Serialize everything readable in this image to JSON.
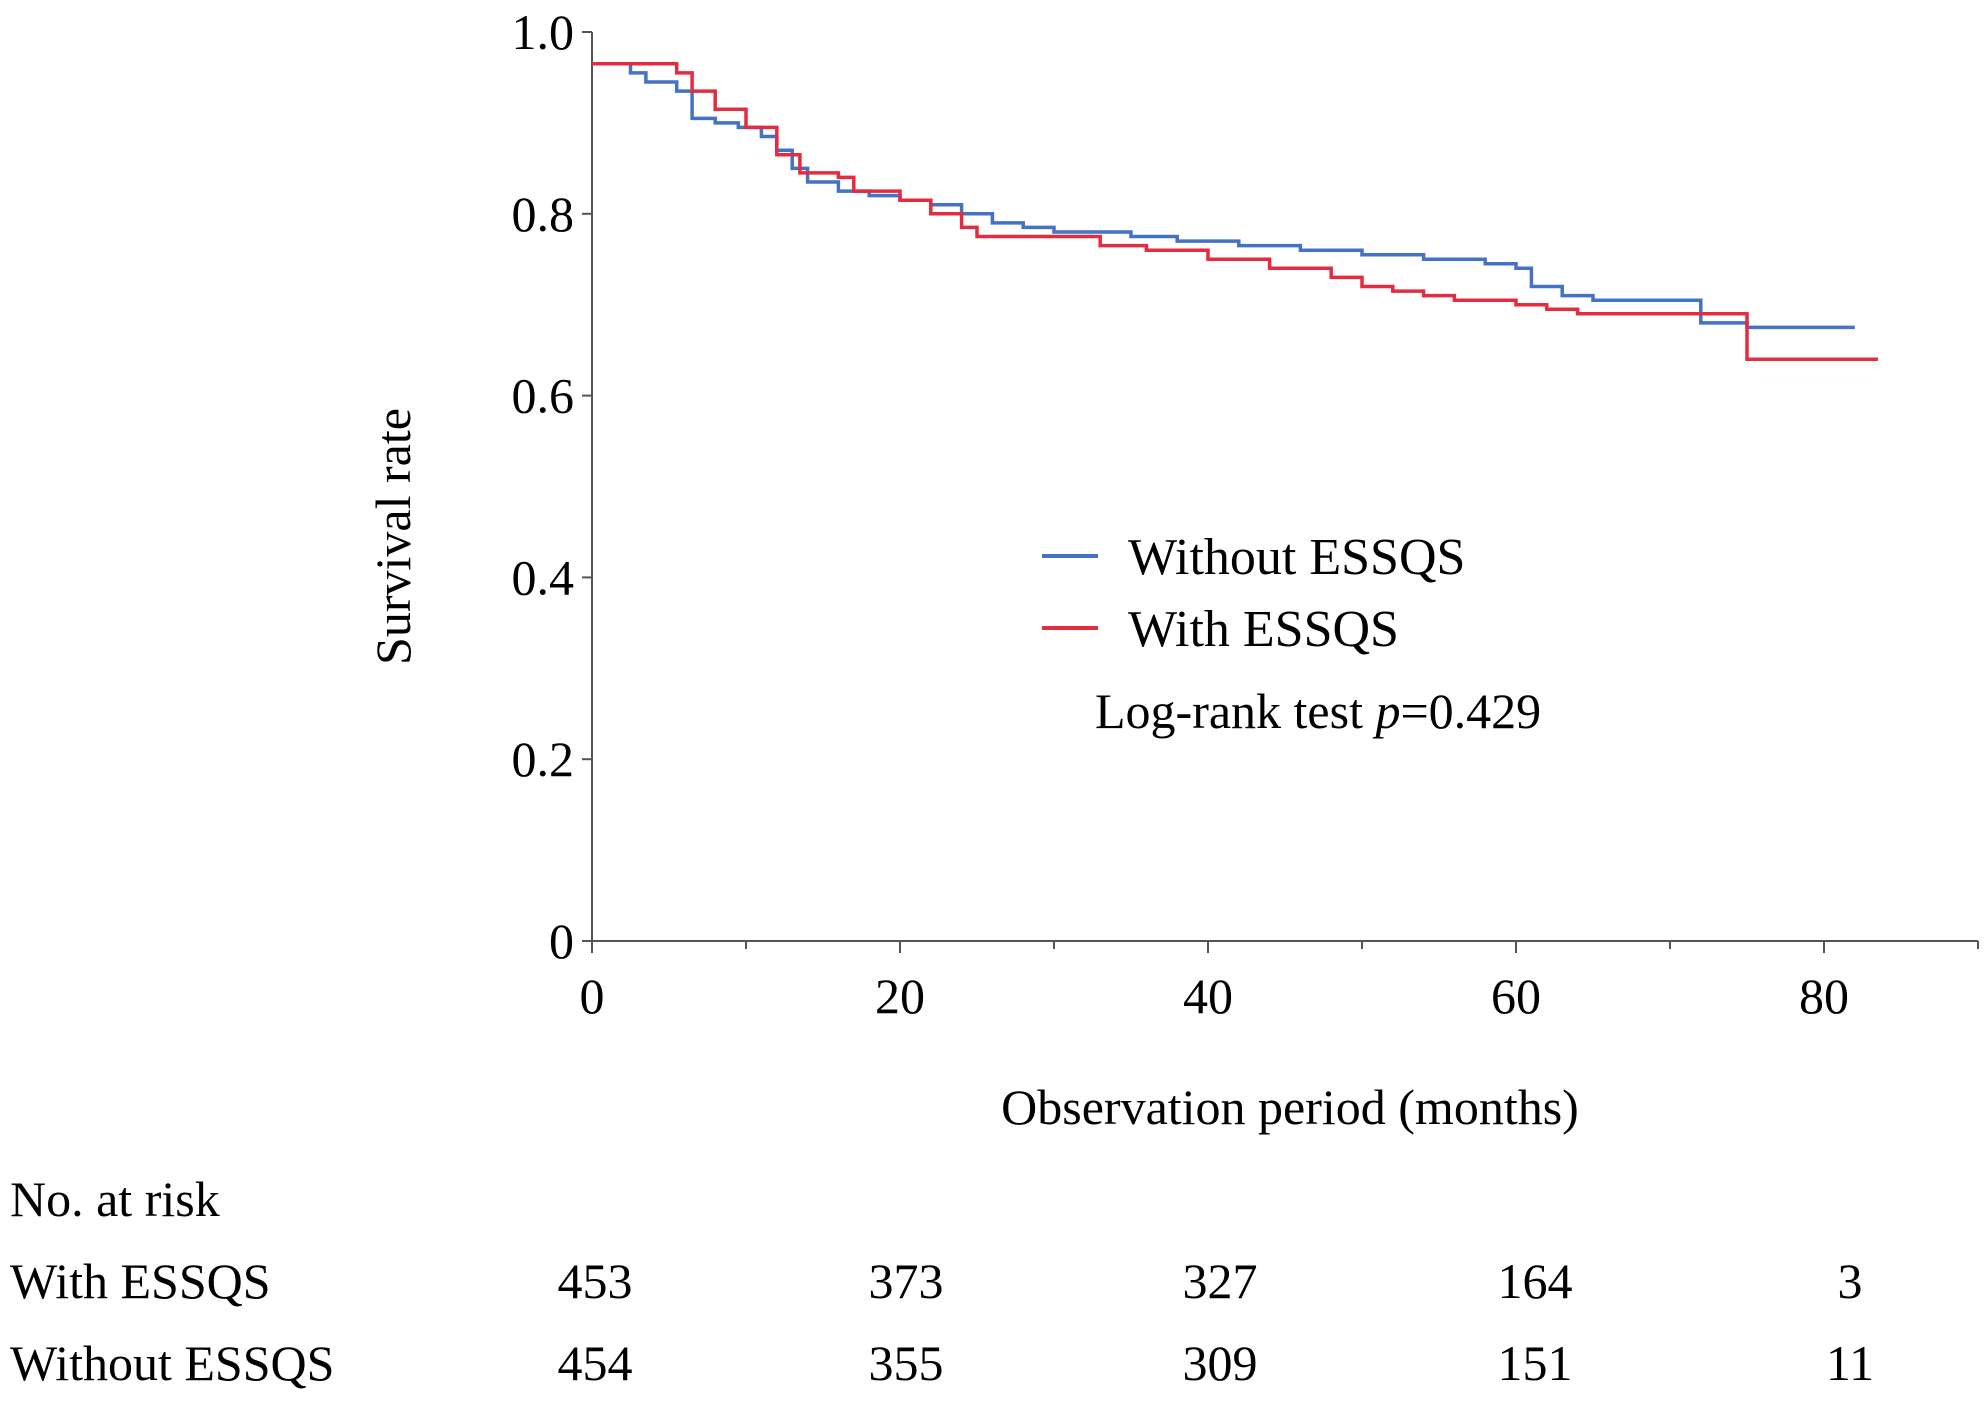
{
  "chart_data": {
    "type": "line",
    "subtype": "kaplan-meier",
    "title": "",
    "xlabel": "Observation period (months)",
    "ylabel": "Survival rate",
    "xlim": [
      0,
      90
    ],
    "ylim": [
      0,
      1.0
    ],
    "x_ticks": [
      0,
      20,
      40,
      60,
      80
    ],
    "x_tick_labels": [
      "0",
      "20",
      "40",
      "60",
      "80"
    ],
    "y_ticks": [
      0,
      0.2,
      0.4,
      0.6,
      0.8,
      1.0
    ],
    "y_tick_labels": [
      "0",
      "0.2",
      "0.4",
      "0.6",
      "0.8",
      "1.0"
    ],
    "grid": false,
    "legend_position": "center-right",
    "annotation": {
      "prefix": "Log-rank test ",
      "italic": "p",
      "suffix": "=0.429"
    },
    "series": [
      {
        "name": "Without ESSQS",
        "color": "#4472c4",
        "x": [
          0,
          1.5,
          2.5,
          3.5,
          5.5,
          6.5,
          8,
          9.5,
          11,
          12,
          13,
          14,
          16,
          18,
          20,
          22,
          24,
          26,
          28,
          30,
          33,
          35,
          38,
          42,
          46,
          50,
          54,
          58,
          60,
          61,
          63,
          65,
          68,
          72,
          75,
          82
        ],
        "y": [
          0.965,
          0.965,
          0.955,
          0.945,
          0.935,
          0.905,
          0.9,
          0.895,
          0.885,
          0.87,
          0.85,
          0.835,
          0.825,
          0.82,
          0.815,
          0.81,
          0.8,
          0.79,
          0.785,
          0.78,
          0.78,
          0.775,
          0.77,
          0.765,
          0.76,
          0.755,
          0.75,
          0.745,
          0.74,
          0.72,
          0.71,
          0.705,
          0.705,
          0.68,
          0.675,
          0.675
        ]
      },
      {
        "name": "With ESSQS",
        "color": "#e32c3f",
        "x": [
          0,
          4.5,
          5.5,
          6.5,
          8,
          10,
          12,
          13.5,
          16,
          17,
          20,
          22,
          24,
          25,
          28,
          31,
          33,
          36,
          40,
          44,
          48,
          50,
          52,
          54,
          56,
          60,
          62,
          64,
          68,
          72,
          75,
          83.5
        ],
        "y": [
          0.965,
          0.965,
          0.955,
          0.935,
          0.915,
          0.895,
          0.865,
          0.845,
          0.84,
          0.825,
          0.815,
          0.8,
          0.785,
          0.775,
          0.775,
          0.775,
          0.765,
          0.76,
          0.75,
          0.74,
          0.73,
          0.72,
          0.715,
          0.71,
          0.705,
          0.7,
          0.695,
          0.69,
          0.69,
          0.69,
          0.64,
          0.64
        ]
      }
    ],
    "risk_table": {
      "title": "No. at risk",
      "times": [
        0,
        20,
        40,
        60,
        80
      ],
      "rows": [
        {
          "label": "With ESSQS",
          "values": [
            "453",
            "373",
            "327",
            "164",
            "3"
          ]
        },
        {
          "label": "Without ESSQS",
          "values": [
            "454",
            "355",
            "309",
            "151",
            "11"
          ]
        }
      ]
    }
  }
}
